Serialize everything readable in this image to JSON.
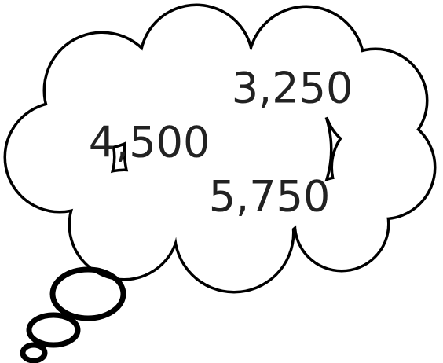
{
  "numbers": [
    "3,250",
    "4,500",
    "5,750"
  ]
}
